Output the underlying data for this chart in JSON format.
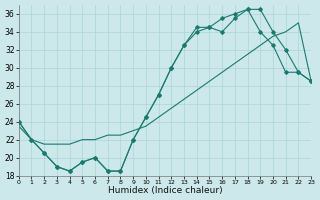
{
  "xlabel": "Humidex (Indice chaleur)",
  "bg_color": "#cce8ea",
  "grid_color": "#aad4d8",
  "line_color": "#1a7a6e",
  "xlim": [
    0,
    23
  ],
  "ylim": [
    18,
    37
  ],
  "xticks": [
    0,
    1,
    2,
    3,
    4,
    5,
    6,
    7,
    8,
    9,
    10,
    11,
    12,
    13,
    14,
    15,
    16,
    17,
    18,
    19,
    20,
    21,
    22,
    23
  ],
  "yticks": [
    18,
    20,
    22,
    24,
    26,
    28,
    30,
    32,
    34,
    36
  ],
  "line1_x": [
    0,
    1,
    2,
    3,
    4,
    5,
    6,
    7,
    8,
    9,
    10,
    11,
    12,
    13,
    14,
    15,
    16,
    17,
    18,
    19,
    20,
    21,
    22,
    23
  ],
  "line1_y": [
    24,
    22,
    20.5,
    19,
    18.5,
    19.5,
    20,
    18.5,
    18.5,
    22,
    24.5,
    27,
    30,
    32.5,
    34.5,
    34.5,
    34,
    35.5,
    36.5,
    36.5,
    34,
    32,
    29.5,
    28.5
  ],
  "line2_x": [
    0,
    1,
    2,
    3,
    4,
    5,
    6,
    7,
    8,
    9,
    10,
    11,
    12,
    13,
    14,
    15,
    16,
    17,
    18,
    19,
    20,
    21,
    22,
    23
  ],
  "line2_y": [
    23.5,
    22,
    21.5,
    21.5,
    21.5,
    22,
    22,
    22.5,
    22.5,
    23,
    23.5,
    24.5,
    25.5,
    26.5,
    27.5,
    28.5,
    29.5,
    30.5,
    31.5,
    32.5,
    33.5,
    34,
    35,
    28.5
  ],
  "line3_x": [
    0,
    1,
    2,
    3,
    4,
    5,
    6,
    7,
    8,
    9,
    10,
    11,
    12,
    13,
    14,
    15,
    16,
    17,
    18,
    19,
    20,
    21,
    22,
    23
  ],
  "line3_y": [
    24,
    22,
    20.5,
    19,
    18.5,
    19.5,
    20,
    18.5,
    18.5,
    22,
    24.5,
    27,
    30,
    32.5,
    34.0,
    34.5,
    35.5,
    36.0,
    36.5,
    34.0,
    32.5,
    29.5,
    29.5,
    28.5
  ]
}
